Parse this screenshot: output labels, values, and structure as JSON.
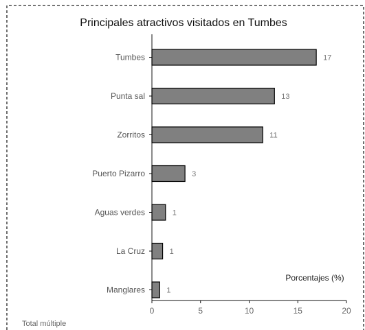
{
  "chart_data": {
    "type": "bar",
    "orientation": "horizontal",
    "title": "Principales atractivos visitados en Tumbes",
    "categories": [
      "Tumbes",
      "Punta sal",
      "Zorritos",
      "Puerto Pizarro",
      "Aguas verdes",
      "La Cruz",
      "Manglares"
    ],
    "values": [
      16.9,
      12.6,
      11.4,
      3.4,
      1.4,
      1.1,
      0.8
    ],
    "data_labels": [
      "17",
      "13",
      "11",
      "3",
      "1",
      "1",
      "1"
    ],
    "xlim": [
      0,
      20
    ],
    "xticks": [
      "0",
      "5",
      "10",
      "15",
      "20"
    ],
    "annotation": "Porcentajes (%)",
    "footnote": "Total múltiple",
    "bar_color": "#808080",
    "legend": "none",
    "grid": false
  }
}
